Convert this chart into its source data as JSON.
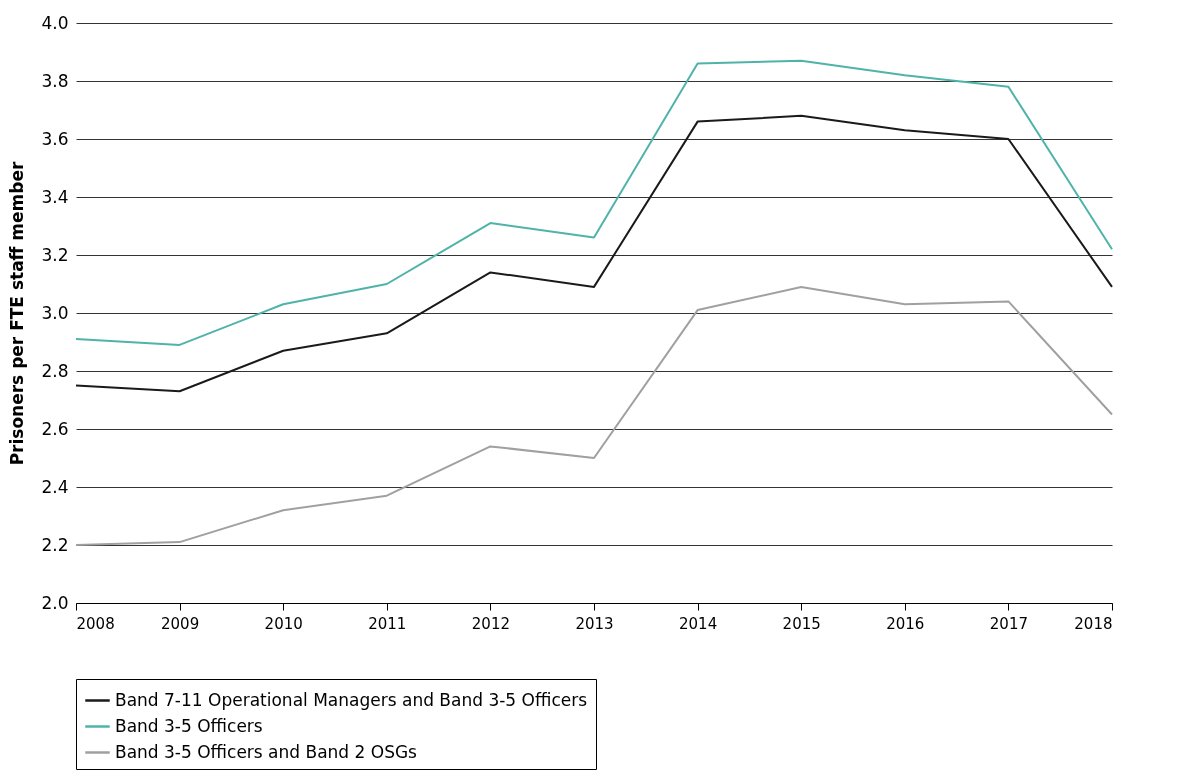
{
  "chart_data": {
    "type": "line",
    "ylabel": "Prisoners per FTE staff member",
    "categories": [
      "2008",
      "2009",
      "2010",
      "2011",
      "2012",
      "2013",
      "2014",
      "2015",
      "2016",
      "2017",
      "2018"
    ],
    "series": [
      {
        "name": "Band 7-11 Operational Managers and Band 3-5 Officers",
        "color": "#1a1a1a",
        "values": [
          2.75,
          2.73,
          2.87,
          2.93,
          3.14,
          3.09,
          3.66,
          3.68,
          3.63,
          3.6,
          3.09
        ]
      },
      {
        "name": "Band 3-5 Officers",
        "color": "#4fb3aa",
        "values": [
          2.91,
          2.89,
          3.03,
          3.1,
          3.31,
          3.26,
          3.86,
          3.87,
          3.82,
          3.78,
          3.22
        ]
      },
      {
        "name": "Band 3-5 Officers and Band 2 OSGs",
        "color": "#a0a0a0",
        "values": [
          2.2,
          2.21,
          2.32,
          2.37,
          2.54,
          2.5,
          3.01,
          3.09,
          3.03,
          3.04,
          2.65
        ]
      }
    ],
    "ylim": [
      2.0,
      4.0
    ],
    "yticks": [
      {
        "value": 2.0,
        "label": "2.0"
      },
      {
        "value": 2.2,
        "label": "2.2"
      },
      {
        "value": 2.4,
        "label": "2.4"
      },
      {
        "value": 2.6,
        "label": "2.6"
      },
      {
        "value": 2.8,
        "label": "2.8"
      },
      {
        "value": 3.0,
        "label": "3.0"
      },
      {
        "value": 3.2,
        "label": "3.2"
      },
      {
        "value": 3.4,
        "label": "3.4"
      },
      {
        "value": 3.6,
        "label": "3.6"
      },
      {
        "value": 3.8,
        "label": "3.8"
      },
      {
        "value": 4.0,
        "label": "4.0"
      }
    ],
    "grid": "y",
    "legend": "bottom",
    "marker": "none",
    "line_style": "solid"
  }
}
